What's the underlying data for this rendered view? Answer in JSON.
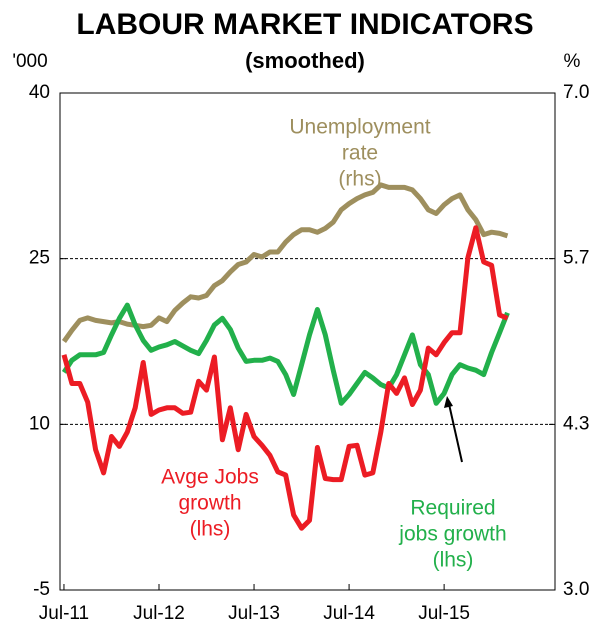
{
  "chart_data": {
    "type": "line",
    "title": "LABOUR MARKET INDICATORS",
    "subtitle": "(smoothed)",
    "ylabel": "'000",
    "y2label": "%",
    "categories": [
      "Jul-11",
      null,
      null,
      null,
      null,
      null,
      null,
      null,
      null,
      null,
      null,
      null,
      "Jul-12",
      null,
      null,
      null,
      null,
      null,
      null,
      null,
      null,
      null,
      null,
      null,
      "Jul-13",
      null,
      null,
      null,
      null,
      null,
      null,
      null,
      null,
      null,
      null,
      null,
      "Jul-14",
      null,
      null,
      null,
      null,
      null,
      null,
      null,
      null,
      null,
      null,
      null,
      "Jul-15",
      null,
      null,
      null,
      null,
      null,
      null,
      null,
      null
    ],
    "ylim": [
      -5,
      40
    ],
    "yticks": [
      -5,
      10,
      25,
      40
    ],
    "y2lim": [
      3,
      7
    ],
    "y2ticks": [
      {
        "value": 3,
        "label": "3.0"
      },
      {
        "value": 4.333,
        "label": "4.3"
      },
      {
        "value": 5.667,
        "label": "5.7"
      },
      {
        "value": 7,
        "label": "7.0"
      }
    ],
    "grid": true,
    "series": [
      {
        "label": [
          "Unemployment",
          "rate",
          "(rhs)"
        ],
        "color": "#9e8f5e",
        "axis": "y2",
        "values": [
          5.0,
          5.09,
          5.17,
          5.19,
          5.17,
          5.16,
          5.15,
          5.16,
          5.14,
          5.13,
          5.12,
          5.13,
          5.19,
          5.16,
          5.25,
          5.31,
          5.36,
          5.35,
          5.37,
          5.45,
          5.49,
          5.56,
          5.62,
          5.64,
          5.7,
          5.68,
          5.72,
          5.72,
          5.8,
          5.86,
          5.9,
          5.9,
          5.88,
          5.91,
          5.96,
          6.06,
          6.11,
          6.15,
          6.18,
          6.2,
          6.26,
          6.24,
          6.24,
          6.24,
          6.22,
          6.15,
          6.06,
          6.03,
          6.1,
          6.15,
          6.18,
          6.06,
          5.98,
          5.86,
          5.88,
          5.87,
          5.85
        ]
      },
      {
        "label": [
          "Required",
          "jobs growth",
          "(lhs)"
        ],
        "color": "#22b04b",
        "values": [
          14.7,
          15.8,
          16.3,
          16.3,
          16.3,
          16.5,
          18.1,
          19.6,
          20.8,
          19.0,
          17.6,
          16.7,
          17.0,
          17.2,
          17.5,
          17.1,
          16.7,
          16.4,
          17.6,
          19.0,
          19.6,
          18.6,
          16.9,
          15.7,
          15.8,
          15.8,
          16.0,
          15.7,
          14.5,
          12.7,
          15.4,
          18.1,
          20.4,
          18.1,
          14.9,
          11.9,
          12.7,
          13.7,
          14.7,
          14.2,
          13.6,
          13.3,
          14.5,
          16.3,
          18.1,
          15.4,
          14.5,
          11.9,
          12.8,
          14.5,
          15.4,
          15.1,
          14.9,
          14.5,
          16.5,
          18.3,
          20.1
        ]
      },
      {
        "label": [
          "Avge Jobs",
          "growth",
          "(lhs)"
        ],
        "color": "#ec1c24",
        "values": [
          16.3,
          13.7,
          13.7,
          12.0,
          7.7,
          5.6,
          8.9,
          8.0,
          9.3,
          11.5,
          15.6,
          10.9,
          11.3,
          11.5,
          11.5,
          11.0,
          11.1,
          13.9,
          13.1,
          16.1,
          8.6,
          11.5,
          7.7,
          10.9,
          8.9,
          8.1,
          7.2,
          5.7,
          5.4,
          1.8,
          0.6,
          1.3,
          7.9,
          5.1,
          5.0,
          5.0,
          8.0,
          8.1,
          5.4,
          5.6,
          9.3,
          13.7,
          12.8,
          14.2,
          11.8,
          13.1,
          16.9,
          16.3,
          17.4,
          18.3,
          18.3,
          25.1,
          27.8,
          24.7,
          24.4,
          19.9,
          19.6
        ]
      }
    ]
  }
}
